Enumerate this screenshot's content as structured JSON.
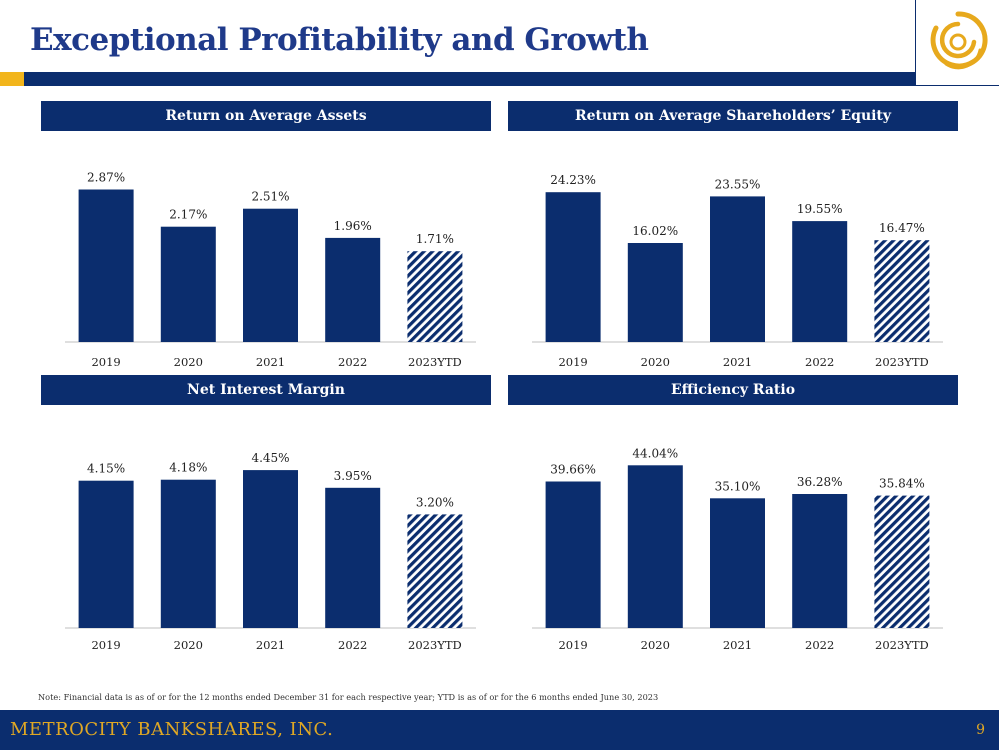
{
  "page": {
    "title": "Exceptional Profitability and Growth",
    "note": "Note: Financial data is as of or for the 12 months ended December 31 for each respective year; YTD is as of or for the 6 months ended June 30, 2023",
    "company": "METROCITY BANKSHARES, INC.",
    "page_number": "9",
    "colors": {
      "navy": "#0b2d6e",
      "gold": "#f2b51c",
      "bar": "#0b2d6e",
      "axis": "#bfbfbf"
    }
  },
  "chart_data": [
    {
      "type": "bar",
      "title": "Return on Average Assets",
      "categories": [
        "2019",
        "2020",
        "2021",
        "2022",
        "2023YTD"
      ],
      "values": [
        2.87,
        2.17,
        2.51,
        1.96,
        1.71
      ],
      "labels": [
        "2.87%",
        "2.17%",
        "2.51%",
        "1.96%",
        "1.71%"
      ],
      "hatched": [
        false,
        false,
        false,
        false,
        true
      ],
      "ylim": [
        0,
        3.2
      ]
    },
    {
      "type": "bar",
      "title": "Return on Average Shareholders’ Equity",
      "categories": [
        "2019",
        "2020",
        "2021",
        "2022",
        "2023YTD"
      ],
      "values": [
        24.23,
        16.02,
        23.55,
        19.55,
        16.47
      ],
      "labels": [
        "24.23%",
        "16.02%",
        "23.55%",
        "19.55%",
        "16.47%"
      ],
      "hatched": [
        false,
        false,
        false,
        false,
        true
      ],
      "ylim": [
        0,
        27.5
      ]
    },
    {
      "type": "bar",
      "title": "Net Interest Margin",
      "categories": [
        "2019",
        "2020",
        "2021",
        "2022",
        "2023YTD"
      ],
      "values": [
        4.15,
        4.18,
        4.45,
        3.95,
        3.2
      ],
      "labels": [
        "4.15%",
        "4.18%",
        "4.45%",
        "3.95%",
        "3.20%"
      ],
      "hatched": [
        false,
        false,
        false,
        false,
        true
      ],
      "ylim": [
        0,
        5.1
      ]
    },
    {
      "type": "bar",
      "title": "Efficiency Ratio",
      "categories": [
        "2019",
        "2020",
        "2021",
        "2022",
        "2023YTD"
      ],
      "values": [
        39.66,
        44.04,
        35.1,
        36.28,
        35.84
      ],
      "labels": [
        "39.66%",
        "44.04%",
        "35.10%",
        "36.28%",
        "35.84%"
      ],
      "hatched": [
        false,
        false,
        false,
        false,
        true
      ],
      "ylim": [
        0,
        49
      ]
    }
  ]
}
